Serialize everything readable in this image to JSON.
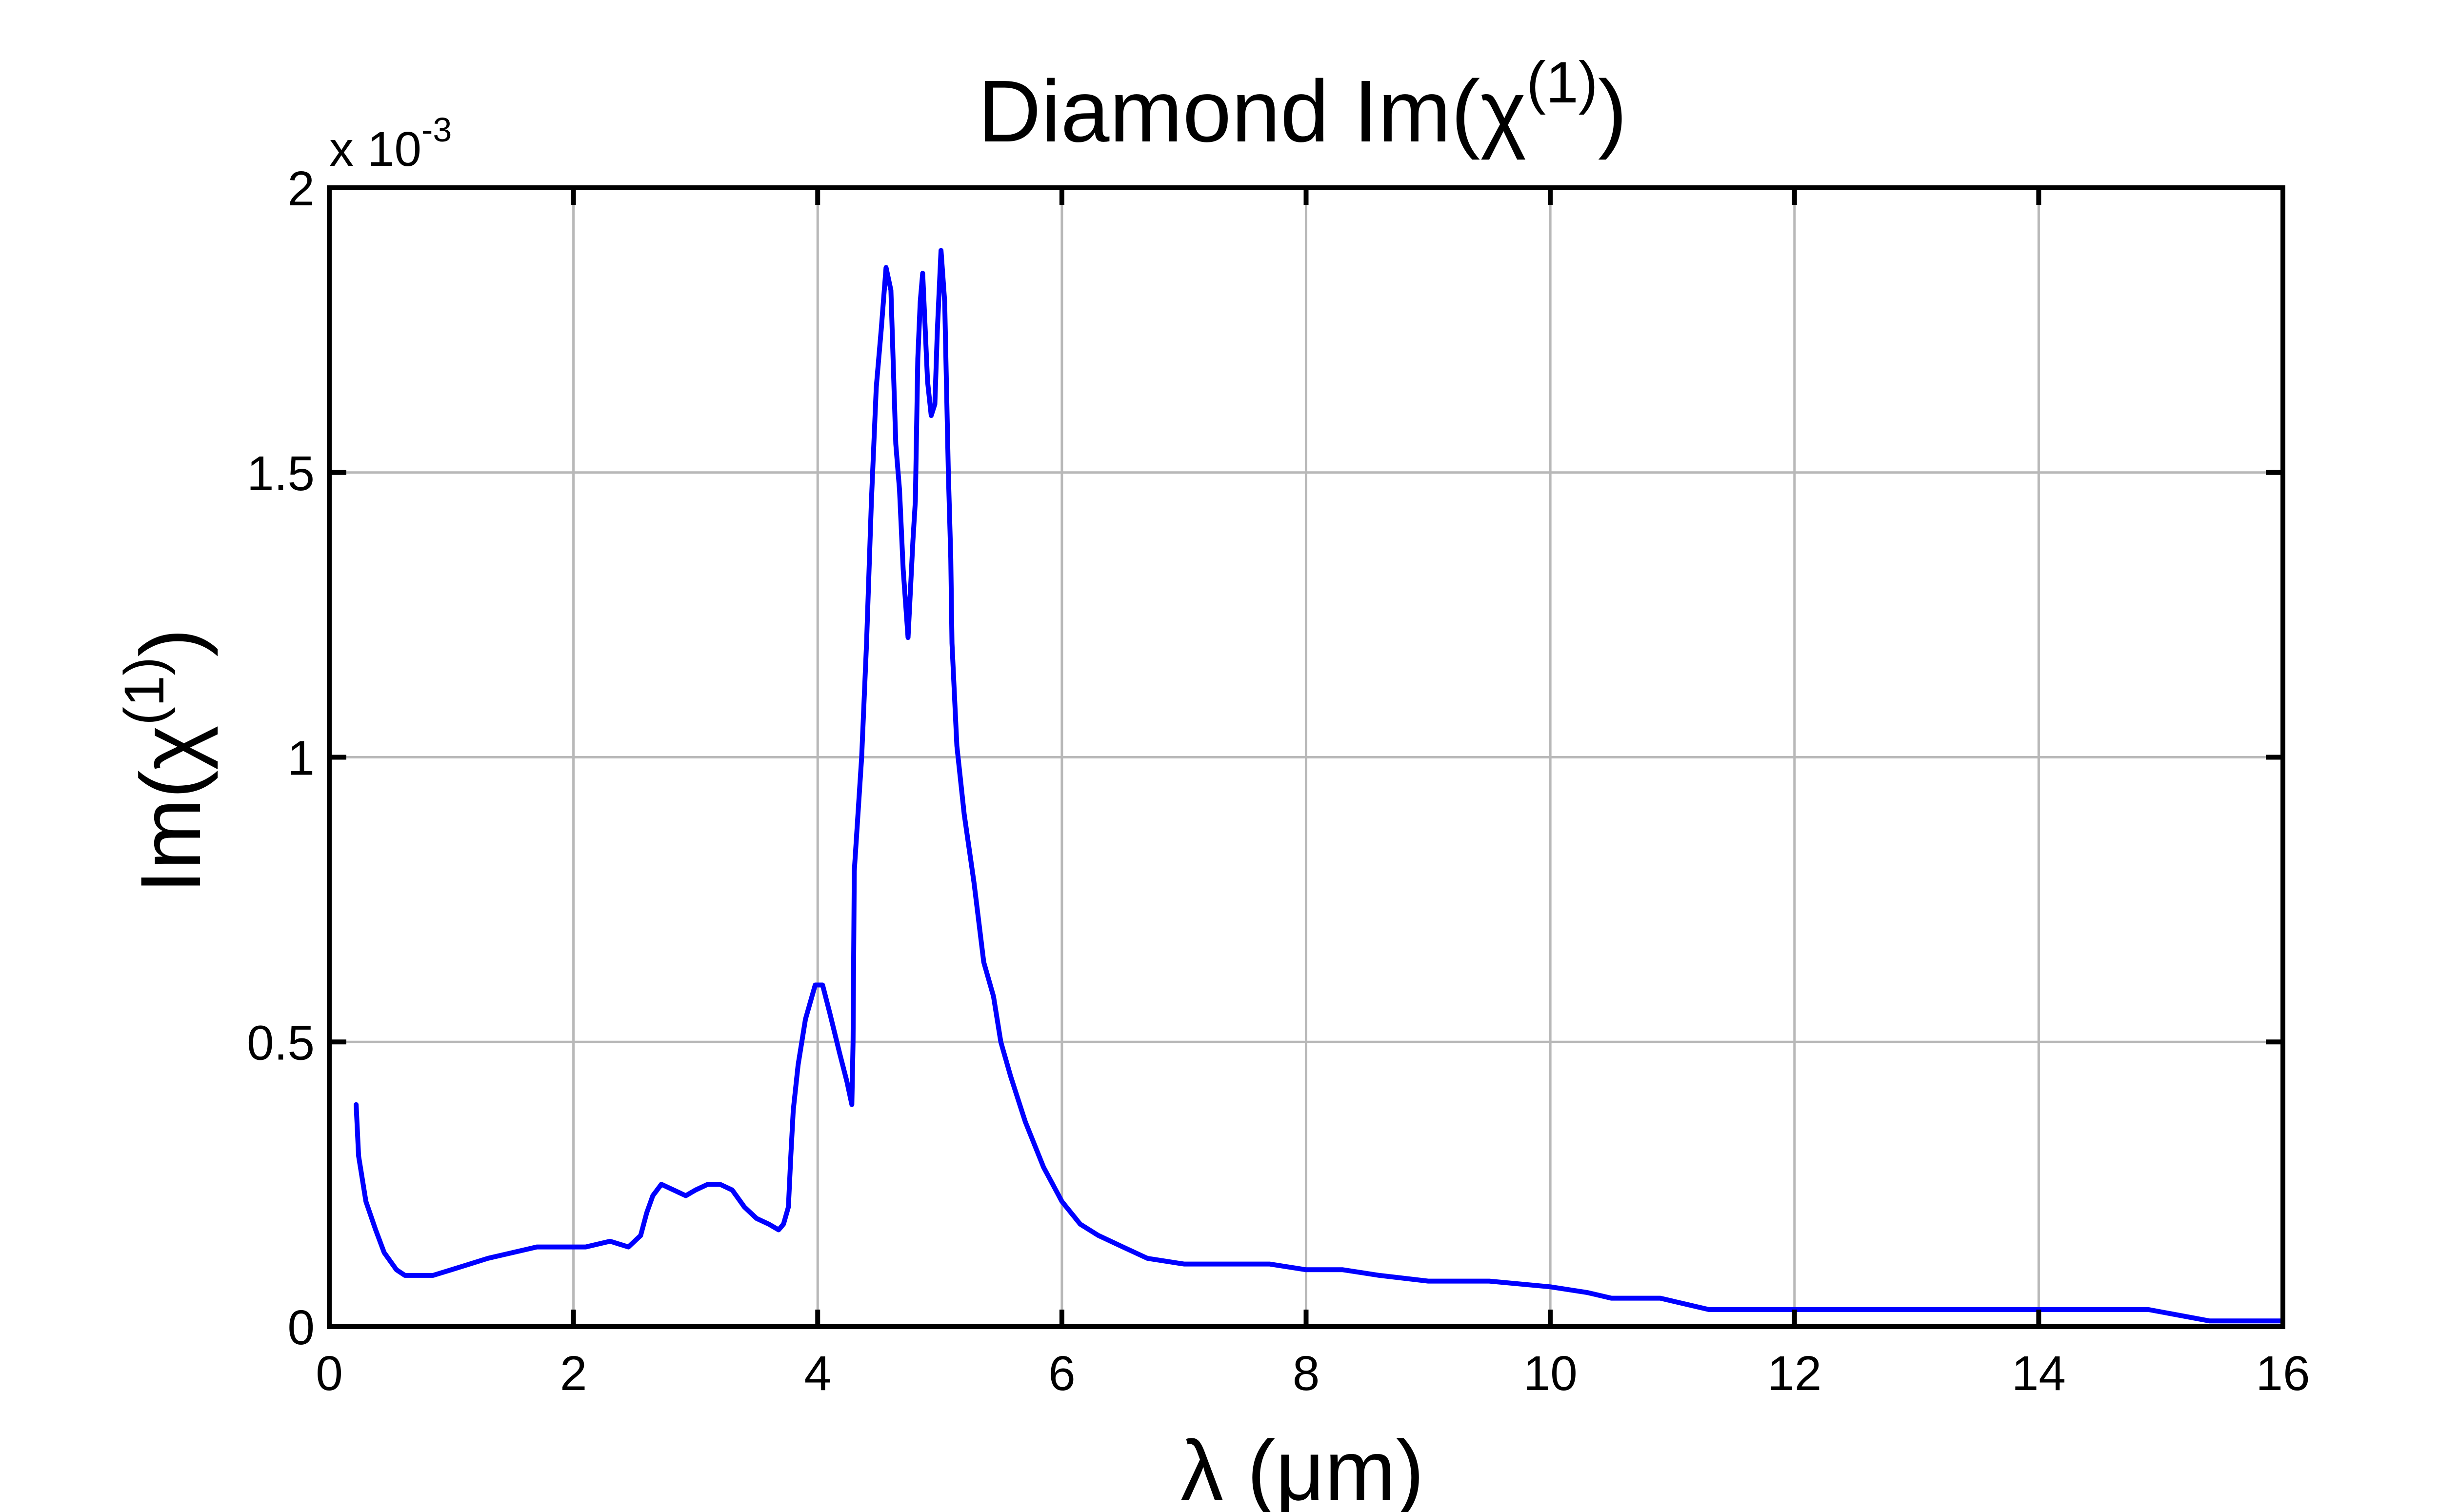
{
  "chart_data": {
    "type": "line",
    "title": {
      "base": "Diamond Im(χ",
      "sup": "(1)",
      "tail": ")"
    },
    "xlabel": "λ (μm)",
    "ylabel": {
      "base": "Im(χ",
      "sup": "(1)",
      "tail": ")"
    },
    "y_multiplier": {
      "base": "x 10",
      "exp": "-3"
    },
    "xlim": [
      0,
      16
    ],
    "ylim": [
      0,
      2
    ],
    "xticks": [
      0,
      2,
      4,
      6,
      8,
      10,
      12,
      14,
      16
    ],
    "xtick_labels": [
      "0",
      "2",
      "4",
      "6",
      "8",
      "10",
      "12",
      "14",
      "16"
    ],
    "yticks": [
      0,
      0.5,
      1,
      1.5,
      2
    ],
    "ytick_labels": [
      "0",
      "0.5",
      "1",
      "1.5",
      "2"
    ],
    "grid": true,
    "line_color": "#0000ff",
    "series": [
      {
        "x": [
          0.22,
          0.24,
          0.3,
          0.38,
          0.45,
          0.55,
          0.62,
          0.7,
          0.85,
          1.0,
          1.15,
          1.3,
          1.5,
          1.7,
          1.9,
          2.1,
          2.3,
          2.45,
          2.55,
          2.6,
          2.65,
          2.72,
          2.82,
          2.92,
          3.0,
          3.1,
          3.2,
          3.3,
          3.4,
          3.5,
          3.6,
          3.68,
          3.72,
          3.76,
          3.78,
          3.8,
          3.84,
          3.9,
          3.98,
          4.04,
          4.1,
          4.18,
          4.24,
          4.28,
          4.29,
          4.3,
          4.36,
          4.4,
          4.44,
          4.48,
          4.52,
          4.56,
          4.6,
          4.64,
          4.67,
          4.7,
          4.74,
          4.78,
          4.8,
          4.82,
          4.84,
          4.86,
          4.9,
          4.93,
          4.96,
          4.98,
          5.01,
          5.04,
          5.07,
          5.09,
          5.1,
          5.14,
          5.2,
          5.28,
          5.36,
          5.44,
          5.5,
          5.58,
          5.7,
          5.85,
          6.0,
          6.15,
          6.3,
          6.5,
          6.7,
          7.0,
          7.2,
          7.5,
          7.7,
          8.0,
          8.3,
          8.6,
          9.0,
          9.5,
          10.0,
          10.3,
          10.5,
          10.9,
          11.3,
          12.0,
          13.0,
          14.0,
          14.9,
          15.4,
          16.0
        ],
        "y": [
          0.39,
          0.3,
          0.22,
          0.17,
          0.13,
          0.1,
          0.09,
          0.09,
          0.09,
          0.1,
          0.11,
          0.12,
          0.13,
          0.14,
          0.14,
          0.14,
          0.15,
          0.14,
          0.16,
          0.2,
          0.23,
          0.25,
          0.24,
          0.23,
          0.24,
          0.25,
          0.25,
          0.24,
          0.21,
          0.19,
          0.18,
          0.17,
          0.18,
          0.21,
          0.3,
          0.38,
          0.46,
          0.54,
          0.6,
          0.6,
          0.55,
          0.48,
          0.43,
          0.39,
          0.5,
          0.8,
          1.0,
          1.2,
          1.45,
          1.65,
          1.75,
          1.86,
          1.82,
          1.55,
          1.47,
          1.33,
          1.21,
          1.38,
          1.45,
          1.7,
          1.8,
          1.85,
          1.66,
          1.6,
          1.62,
          1.75,
          1.89,
          1.8,
          1.5,
          1.35,
          1.2,
          1.02,
          0.9,
          0.78,
          0.64,
          0.58,
          0.5,
          0.44,
          0.36,
          0.28,
          0.22,
          0.18,
          0.16,
          0.14,
          0.12,
          0.11,
          0.11,
          0.11,
          0.11,
          0.1,
          0.1,
          0.09,
          0.08,
          0.08,
          0.07,
          0.06,
          0.05,
          0.05,
          0.03,
          0.03,
          0.03,
          0.03,
          0.03,
          0.01,
          0.01
        ]
      }
    ]
  }
}
